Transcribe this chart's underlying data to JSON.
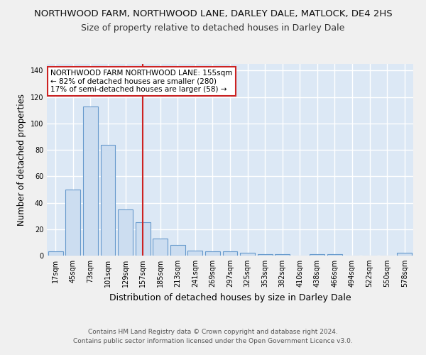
{
  "title": "NORTHWOOD FARM, NORTHWOOD LANE, DARLEY DALE, MATLOCK, DE4 2HS",
  "subtitle": "Size of property relative to detached houses in Darley Dale",
  "xlabel": "Distribution of detached houses by size in Darley Dale",
  "ylabel": "Number of detached properties",
  "bar_labels": [
    "17sqm",
    "45sqm",
    "73sqm",
    "101sqm",
    "129sqm",
    "157sqm",
    "185sqm",
    "213sqm",
    "241sqm",
    "269sqm",
    "297sqm",
    "325sqm",
    "353sqm",
    "382sqm",
    "410sqm",
    "438sqm",
    "466sqm",
    "494sqm",
    "522sqm",
    "550sqm",
    "578sqm"
  ],
  "bar_values": [
    3,
    50,
    113,
    84,
    35,
    25,
    13,
    8,
    4,
    3,
    3,
    2,
    1,
    1,
    0,
    1,
    1,
    0,
    0,
    0,
    2
  ],
  "bar_color": "#ccddf0",
  "bar_edge_color": "#6699cc",
  "vline_x_index": 5,
  "vline_color": "#cc2222",
  "ylim": [
    0,
    145
  ],
  "yticks": [
    0,
    20,
    40,
    60,
    80,
    100,
    120,
    140
  ],
  "annotation_text": "NORTHWOOD FARM NORTHWOOD LANE: 155sqm\n← 82% of detached houses are smaller (280)\n17% of semi-detached houses are larger (58) →",
  "annotation_box_facecolor": "#ffffff",
  "annotation_box_edgecolor": "#cc2222",
  "footer1": "Contains HM Land Registry data © Crown copyright and database right 2024.",
  "footer2": "Contains public sector information licensed under the Open Government Licence v3.0.",
  "plot_bg_color": "#dce8f5",
  "fig_bg_color": "#f0f0f0",
  "grid_color": "#ffffff",
  "title_fontsize": 9.5,
  "subtitle_fontsize": 9,
  "ylabel_fontsize": 8.5,
  "xlabel_fontsize": 9,
  "tick_fontsize": 7,
  "annotation_fontsize": 7.5,
  "footer_fontsize": 6.5
}
